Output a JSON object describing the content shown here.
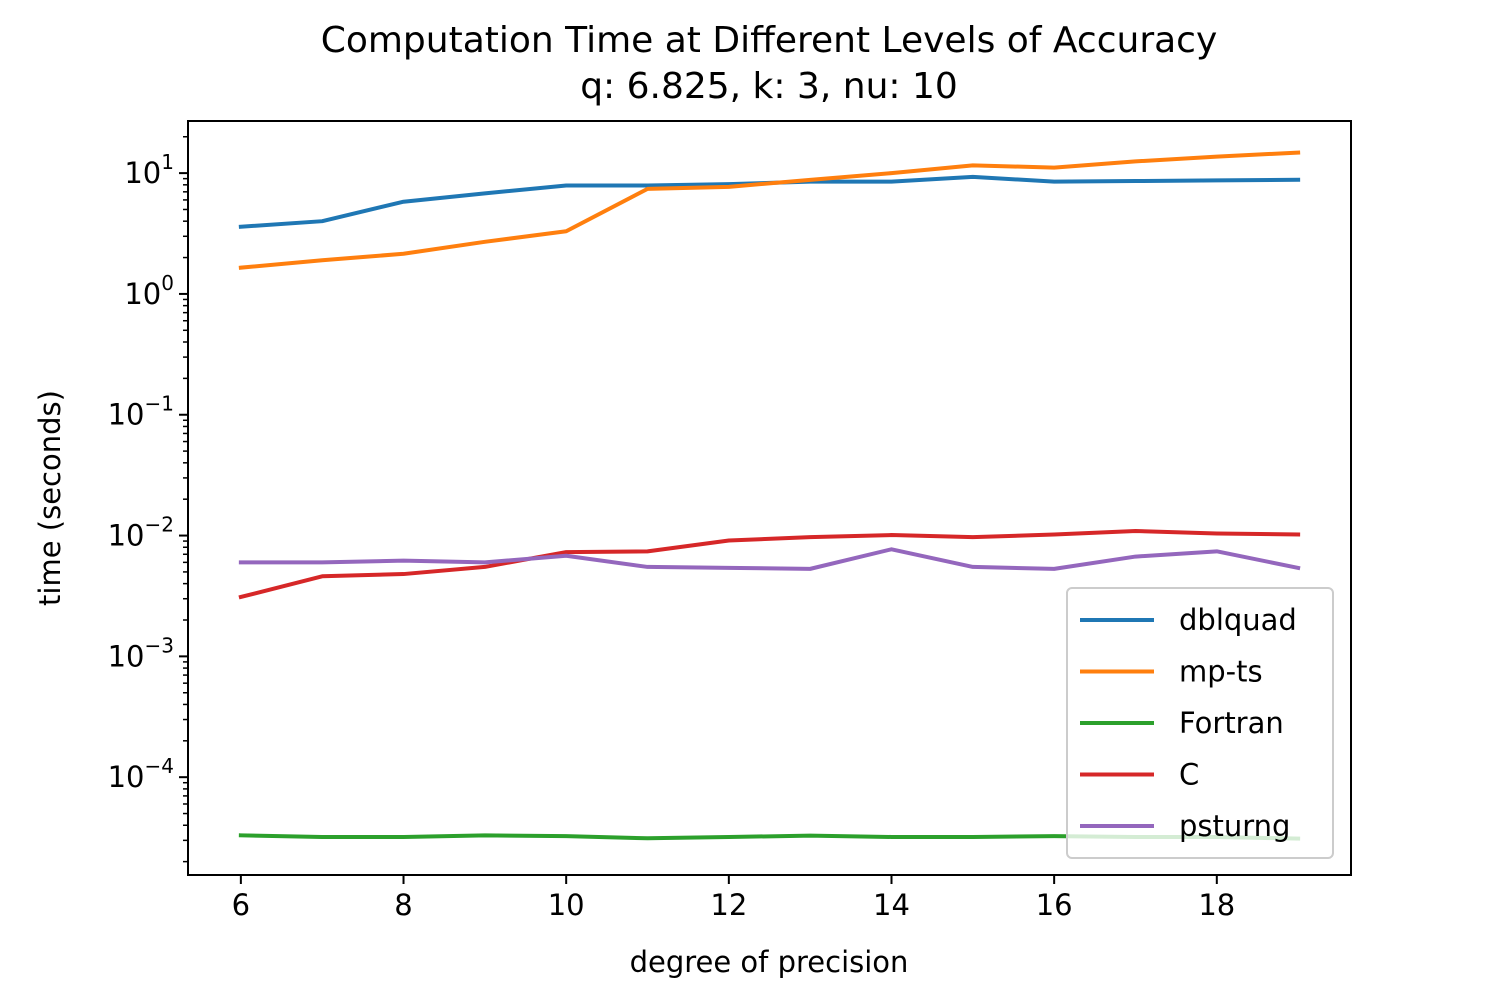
{
  "chart_data": {
    "type": "line",
    "title": "Computation Time at Different Levels of Accuracy",
    "subtitle": "q: 6.825, k: 3, nu: 10",
    "xlabel": "degree of precision",
    "ylabel": "time (seconds)",
    "yscale": "log",
    "xlim": [
      5.35,
      19.65
    ],
    "ylim": [
      1.55e-05,
      27
    ],
    "x_ticks": [
      6,
      8,
      10,
      12,
      14,
      16,
      18
    ],
    "y_ticks": [
      {
        "base": "10",
        "exp": "1",
        "value": 10
      },
      {
        "base": "10",
        "exp": "0",
        "value": 1
      },
      {
        "base": "10",
        "exp": "−1",
        "value": 0.1
      },
      {
        "base": "10",
        "exp": "−2",
        "value": 0.01
      },
      {
        "base": "10",
        "exp": "−3",
        "value": 0.001
      },
      {
        "base": "10",
        "exp": "−4",
        "value": 0.0001
      }
    ],
    "legend_position": "lower-right",
    "grid": false,
    "x": [
      6,
      7,
      8,
      9,
      10,
      11,
      12,
      13,
      14,
      15,
      16,
      17,
      18,
      19
    ],
    "series": [
      {
        "name": "dblquad",
        "color": "#1f77b4",
        "values": [
          3.6,
          4.0,
          5.8,
          6.8,
          7.9,
          7.9,
          8.1,
          8.5,
          8.5,
          9.3,
          8.5,
          8.6,
          8.7,
          8.8
        ]
      },
      {
        "name": "mp-ts",
        "color": "#ff7f0e",
        "values": [
          1.65,
          1.9,
          2.15,
          2.7,
          3.3,
          7.4,
          7.7,
          8.8,
          10.0,
          11.6,
          11.1,
          12.5,
          13.7,
          14.8
        ]
      },
      {
        "name": "Fortran",
        "color": "#2ca02c",
        "values": [
          3.3e-05,
          3.2e-05,
          3.2e-05,
          3.3e-05,
          3.25e-05,
          3.12e-05,
          3.2e-05,
          3.28e-05,
          3.2e-05,
          3.2e-05,
          3.25e-05,
          3.2e-05,
          3.2e-05,
          3.1e-05
        ]
      },
      {
        "name": "C",
        "color": "#d62728",
        "values": [
          0.0031,
          0.0046,
          0.0048,
          0.0055,
          0.0073,
          0.0074,
          0.0091,
          0.0097,
          0.0101,
          0.0097,
          0.0102,
          0.0109,
          0.0104,
          0.0102
        ]
      },
      {
        "name": "psturng",
        "color": "#9467bd",
        "values": [
          0.006,
          0.006,
          0.0062,
          0.006,
          0.0068,
          0.0055,
          0.0054,
          0.0053,
          0.0077,
          0.0055,
          0.0053,
          0.0067,
          0.0074,
          0.0054
        ]
      }
    ]
  }
}
